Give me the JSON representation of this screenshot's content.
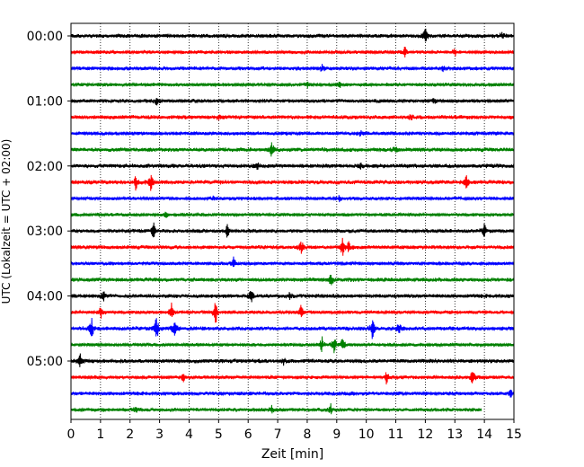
{
  "chart_data": {
    "type": "line",
    "xlabel": "Zeit  [min]",
    "ylabel": "UTC (Lokalzeit = UTC + 02:00)",
    "xlim": [
      0,
      15
    ],
    "x_ticks": [
      0,
      1,
      2,
      3,
      4,
      5,
      6,
      7,
      8,
      9,
      10,
      11,
      12,
      13,
      14,
      15
    ],
    "y_tick_labels": [
      "00:00",
      "01:00",
      "02:00",
      "03:00",
      "04:00",
      "05:00"
    ],
    "y_tick_rows": [
      0,
      4,
      8,
      12,
      16,
      20
    ],
    "row_interval_minutes": 15,
    "grid": {
      "x": true,
      "style": "dotted"
    },
    "colors": [
      "#000000",
      "#ff0000",
      "#0000ff",
      "#008000"
    ],
    "rows": [
      {
        "start": "00:00",
        "color": "#000000",
        "spikes": [
          [
            12.0,
            1.0
          ],
          [
            14.6,
            0.4
          ]
        ]
      },
      {
        "start": "00:15",
        "color": "#ff0000",
        "spikes": [
          [
            11.3,
            0.7
          ],
          [
            13.0,
            0.4
          ]
        ]
      },
      {
        "start": "00:30",
        "color": "#0000ff",
        "spikes": [
          [
            8.5,
            0.4
          ],
          [
            12.6,
            0.3
          ]
        ]
      },
      {
        "start": "00:45",
        "color": "#008000",
        "spikes": [
          [
            8.0,
            0.3
          ],
          [
            9.1,
            0.3
          ]
        ]
      },
      {
        "start": "01:00",
        "color": "#000000",
        "spikes": [
          [
            2.9,
            0.5
          ],
          [
            12.3,
            0.3
          ]
        ]
      },
      {
        "start": "01:15",
        "color": "#ff0000",
        "spikes": [
          [
            5.0,
            0.3
          ],
          [
            11.5,
            0.3
          ]
        ]
      },
      {
        "start": "01:30",
        "color": "#0000ff",
        "spikes": [
          [
            9.8,
            0.3
          ]
        ]
      },
      {
        "start": "01:45",
        "color": "#008000",
        "spikes": [
          [
            6.8,
            0.9
          ],
          [
            11.0,
            0.3
          ]
        ]
      },
      {
        "start": "02:00",
        "color": "#000000",
        "spikes": [
          [
            6.3,
            0.4
          ],
          [
            9.8,
            0.4
          ]
        ]
      },
      {
        "start": "02:15",
        "color": "#ff0000",
        "spikes": [
          [
            2.2,
            0.9
          ],
          [
            2.7,
            1.0
          ],
          [
            13.4,
            0.9
          ]
        ]
      },
      {
        "start": "02:30",
        "color": "#0000ff",
        "spikes": [
          [
            4.8,
            0.3
          ],
          [
            9.1,
            0.3
          ]
        ]
      },
      {
        "start": "02:45",
        "color": "#008000",
        "spikes": [
          [
            3.2,
            0.3
          ]
        ]
      },
      {
        "start": "03:00",
        "color": "#000000",
        "spikes": [
          [
            2.8,
            0.8
          ],
          [
            5.3,
            0.8
          ],
          [
            14.0,
            0.8
          ]
        ]
      },
      {
        "start": "03:15",
        "color": "#ff0000",
        "spikes": [
          [
            7.8,
            0.7
          ],
          [
            9.2,
            1.0
          ],
          [
            9.4,
            0.6
          ]
        ]
      },
      {
        "start": "03:30",
        "color": "#0000ff",
        "spikes": [
          [
            5.5,
            0.9
          ]
        ]
      },
      {
        "start": "03:45",
        "color": "#008000",
        "spikes": [
          [
            8.8,
            0.7
          ]
        ]
      },
      {
        "start": "04:00",
        "color": "#000000",
        "spikes": [
          [
            1.1,
            0.6
          ],
          [
            6.1,
            0.9
          ],
          [
            7.4,
            0.4
          ]
        ]
      },
      {
        "start": "04:15",
        "color": "#ff0000",
        "spikes": [
          [
            1.0,
            0.9
          ],
          [
            3.4,
            1.0
          ],
          [
            4.9,
            1.4
          ],
          [
            7.8,
            0.9
          ]
        ]
      },
      {
        "start": "04:30",
        "color": "#0000ff",
        "spikes": [
          [
            0.7,
            1.2
          ],
          [
            2.9,
            1.6
          ],
          [
            3.5,
            0.9
          ],
          [
            10.2,
            1.3
          ],
          [
            11.1,
            0.6
          ]
        ]
      },
      {
        "start": "04:45",
        "color": "#008000",
        "spikes": [
          [
            8.5,
            0.9
          ],
          [
            8.9,
            1.2
          ],
          [
            9.2,
            0.8
          ]
        ]
      },
      {
        "start": "05:00",
        "color": "#000000",
        "spikes": [
          [
            0.3,
            0.9
          ],
          [
            7.2,
            0.4
          ]
        ]
      },
      {
        "start": "05:15",
        "color": "#ff0000",
        "spikes": [
          [
            3.8,
            0.6
          ],
          [
            10.7,
            0.9
          ],
          [
            13.6,
            1.1
          ]
        ]
      },
      {
        "start": "05:30",
        "color": "#0000ff",
        "spikes": [
          [
            14.9,
            0.6
          ]
        ]
      },
      {
        "start": "05:45",
        "color": "#008000",
        "spikes": [
          [
            2.2,
            0.5
          ],
          [
            6.8,
            0.6
          ],
          [
            8.8,
            0.6
          ]
        ],
        "end": 13.9
      }
    ]
  }
}
